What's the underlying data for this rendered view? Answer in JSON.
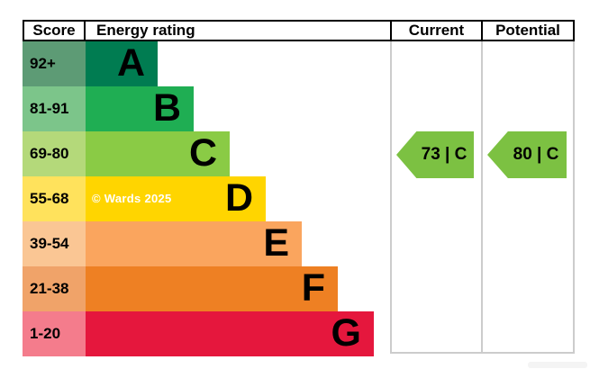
{
  "chart_data": {
    "type": "bar",
    "subtype": "epc-energy-efficiency-rating",
    "columns": [
      "Score",
      "Energy rating",
      "Current",
      "Potential"
    ],
    "bands": [
      {
        "grade": "A",
        "score_range": "92+",
        "bar_color": "#007c51",
        "score_cell_color": "#5d9b75",
        "bar_level": 1
      },
      {
        "grade": "B",
        "score_range": "81-91",
        "bar_color": "#1fae53",
        "score_cell_color": "#7cc58a",
        "bar_level": 2
      },
      {
        "grade": "C",
        "score_range": "69-80",
        "bar_color": "#8acb45",
        "score_cell_color": "#b4d97a",
        "bar_level": 3
      },
      {
        "grade": "D",
        "score_range": "55-68",
        "bar_color": "#ffd500",
        "score_cell_color": "#ffe25c",
        "bar_level": 4
      },
      {
        "grade": "E",
        "score_range": "39-54",
        "bar_color": "#faa55e",
        "score_cell_color": "#fac694",
        "bar_level": 5
      },
      {
        "grade": "F",
        "score_range": "21-38",
        "bar_color": "#ee8023",
        "score_cell_color": "#f0a369",
        "bar_level": 6
      },
      {
        "grade": "G",
        "score_range": "1-20",
        "bar_color": "#e5173d",
        "score_cell_color": "#f47c8c",
        "bar_level": 7
      }
    ],
    "current": {
      "score": 73,
      "band": "C",
      "display": "73 | C",
      "arrow_color": "#7cc142",
      "row_index": 2
    },
    "potential": {
      "score": 80,
      "band": "C",
      "display": "80 | C",
      "arrow_color": "#7cc142",
      "row_index": 2
    },
    "watermark": "© Wards 2025",
    "watermark_band_index": 3
  }
}
